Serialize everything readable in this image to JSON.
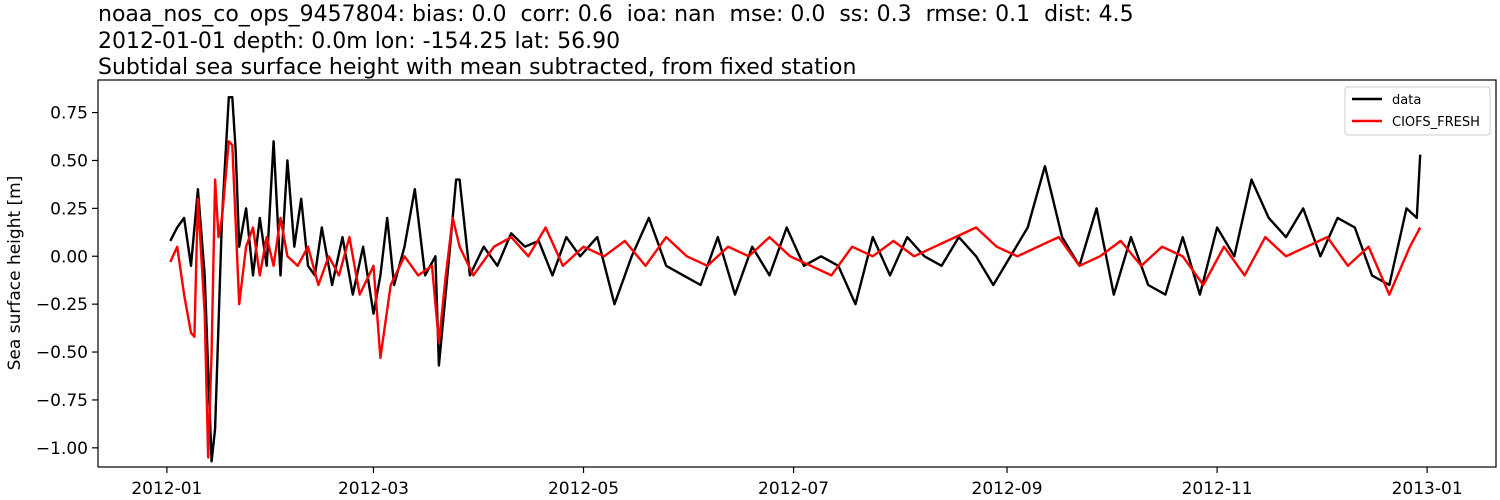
{
  "chart_data": {
    "type": "line",
    "title_lines": [
      "noaa_nos_co_ops_9457804: bias: 0.0  corr: 0.6  ioa: nan  mse: 0.0  ss: 0.3  rmse: 0.1  dist: 4.5",
      "2012-01-01 depth: 0.0m lon: -154.25 lat: 56.90",
      "Subtidal sea surface height with mean subtracted, from fixed station"
    ],
    "xlabel": "",
    "ylabel": "Sea surface height [m]",
    "xlim": [
      "2011-12-12",
      "2013-01-21"
    ],
    "ylim": [
      -1.1,
      0.92
    ],
    "x_ticks": [
      "2012-01-01",
      "2012-03-01",
      "2012-05-01",
      "2012-07-01",
      "2012-09-01",
      "2012-11-01",
      "2013-01-01"
    ],
    "x_tick_labels": [
      "2012-01",
      "2012-03",
      "2012-05",
      "2012-07",
      "2012-09",
      "2012-11",
      "2013-01"
    ],
    "y_ticks": [
      -1.0,
      -0.75,
      -0.5,
      -0.25,
      0.0,
      0.25,
      0.5,
      0.75
    ],
    "y_tick_labels": [
      "−1.00",
      "−0.75",
      "−0.50",
      "−0.25",
      "0.00",
      "0.25",
      "0.50",
      "0.75"
    ],
    "grid": false,
    "legend_position": "upper right",
    "series": [
      {
        "name": "data",
        "color": "#000000",
        "x": [
          "2012-01-02",
          "2012-01-04",
          "2012-01-06",
          "2012-01-08",
          "2012-01-10",
          "2012-01-12",
          "2012-01-13",
          "2012-01-14",
          "2012-01-15",
          "2012-01-17",
          "2012-01-19",
          "2012-01-20",
          "2012-01-21",
          "2012-01-22",
          "2012-01-24",
          "2012-01-26",
          "2012-01-28",
          "2012-01-30",
          "2012-02-01",
          "2012-02-03",
          "2012-02-05",
          "2012-02-07",
          "2012-02-09",
          "2012-02-11",
          "2012-02-13",
          "2012-02-15",
          "2012-02-18",
          "2012-02-21",
          "2012-02-24",
          "2012-02-27",
          "2012-03-01",
          "2012-03-03",
          "2012-03-05",
          "2012-03-07",
          "2012-03-10",
          "2012-03-13",
          "2012-03-16",
          "2012-03-19",
          "2012-03-20",
          "2012-03-23",
          "2012-03-25",
          "2012-03-26",
          "2012-03-29",
          "2012-04-02",
          "2012-04-06",
          "2012-04-10",
          "2012-04-14",
          "2012-04-18",
          "2012-04-22",
          "2012-04-26",
          "2012-04-30",
          "2012-05-05",
          "2012-05-10",
          "2012-05-15",
          "2012-05-20",
          "2012-05-25",
          "2012-05-30",
          "2012-06-04",
          "2012-06-09",
          "2012-06-14",
          "2012-06-19",
          "2012-06-24",
          "2012-06-29",
          "2012-07-04",
          "2012-07-09",
          "2012-07-14",
          "2012-07-19",
          "2012-07-24",
          "2012-07-29",
          "2012-08-03",
          "2012-08-08",
          "2012-08-13",
          "2012-08-18",
          "2012-08-23",
          "2012-08-28",
          "2012-09-02",
          "2012-09-07",
          "2012-09-12",
          "2012-09-17",
          "2012-09-22",
          "2012-09-27",
          "2012-10-02",
          "2012-10-07",
          "2012-10-12",
          "2012-10-17",
          "2012-10-22",
          "2012-10-27",
          "2012-11-01",
          "2012-11-06",
          "2012-11-11",
          "2012-11-16",
          "2012-11-21",
          "2012-11-26",
          "2012-12-01",
          "2012-12-06",
          "2012-12-11",
          "2012-12-16",
          "2012-12-21",
          "2012-12-26",
          "2012-12-29",
          "2012-12-30"
        ],
        "y": [
          0.08,
          0.15,
          0.2,
          -0.05,
          0.35,
          -0.1,
          -0.6,
          -1.07,
          -0.9,
          0.2,
          0.83,
          0.83,
          0.55,
          0.05,
          0.25,
          -0.1,
          0.2,
          -0.05,
          0.6,
          -0.1,
          0.5,
          0.05,
          0.3,
          -0.05,
          -0.1,
          0.15,
          -0.15,
          0.1,
          -0.2,
          0.05,
          -0.3,
          -0.1,
          0.2,
          -0.15,
          0.05,
          0.35,
          -0.1,
          0.0,
          -0.57,
          0.0,
          0.4,
          0.4,
          -0.1,
          0.05,
          -0.05,
          0.12,
          0.05,
          0.08,
          -0.1,
          0.1,
          0.0,
          0.1,
          -0.25,
          0.0,
          0.2,
          -0.05,
          -0.1,
          -0.15,
          0.1,
          -0.2,
          0.05,
          -0.1,
          0.15,
          -0.05,
          0.0,
          -0.05,
          -0.25,
          0.1,
          -0.1,
          0.1,
          0.0,
          -0.05,
          0.1,
          0.0,
          -0.15,
          0.0,
          0.15,
          0.47,
          0.1,
          -0.05,
          0.25,
          -0.2,
          0.1,
          -0.15,
          -0.2,
          0.1,
          -0.2,
          0.15,
          0.0,
          0.4,
          0.2,
          0.1,
          0.25,
          0.0,
          0.2,
          0.15,
          -0.1,
          -0.15,
          0.25,
          0.2,
          0.53
        ]
      },
      {
        "name": "CIOFS_FRESH",
        "color": "#ff0000",
        "x": [
          "2012-01-02",
          "2012-01-04",
          "2012-01-06",
          "2012-01-08",
          "2012-01-09",
          "2012-01-10",
          "2012-01-12",
          "2012-01-13",
          "2012-01-14",
          "2012-01-15",
          "2012-01-16",
          "2012-01-17",
          "2012-01-19",
          "2012-01-20",
          "2012-01-22",
          "2012-01-24",
          "2012-01-26",
          "2012-01-28",
          "2012-01-30",
          "2012-02-01",
          "2012-02-03",
          "2012-02-05",
          "2012-02-08",
          "2012-02-11",
          "2012-02-14",
          "2012-02-17",
          "2012-02-20",
          "2012-02-23",
          "2012-02-26",
          "2012-03-01",
          "2012-03-03",
          "2012-03-06",
          "2012-03-10",
          "2012-03-14",
          "2012-03-18",
          "2012-03-20",
          "2012-03-22",
          "2012-03-24",
          "2012-03-26",
          "2012-03-30",
          "2012-04-05",
          "2012-04-10",
          "2012-04-15",
          "2012-04-20",
          "2012-04-25",
          "2012-05-01",
          "2012-05-07",
          "2012-05-13",
          "2012-05-19",
          "2012-05-25",
          "2012-05-31",
          "2012-06-06",
          "2012-06-12",
          "2012-06-18",
          "2012-06-24",
          "2012-06-30",
          "2012-07-06",
          "2012-07-12",
          "2012-07-18",
          "2012-07-24",
          "2012-07-30",
          "2012-08-05",
          "2012-08-11",
          "2012-08-17",
          "2012-08-23",
          "2012-08-29",
          "2012-09-04",
          "2012-09-10",
          "2012-09-16",
          "2012-09-22",
          "2012-09-28",
          "2012-10-04",
          "2012-10-10",
          "2012-10-16",
          "2012-10-22",
          "2012-10-28",
          "2012-11-03",
          "2012-11-09",
          "2012-11-15",
          "2012-11-21",
          "2012-11-27",
          "2012-12-03",
          "2012-12-09",
          "2012-12-15",
          "2012-12-21",
          "2012-12-27",
          "2012-12-30"
        ],
        "y": [
          -0.03,
          0.05,
          -0.2,
          -0.4,
          -0.42,
          0.3,
          -0.3,
          -1.05,
          -0.5,
          0.4,
          0.1,
          0.2,
          0.6,
          0.58,
          -0.25,
          0.05,
          0.15,
          -0.1,
          0.1,
          -0.05,
          0.2,
          0.0,
          -0.05,
          0.05,
          -0.15,
          0.0,
          -0.1,
          0.1,
          -0.2,
          -0.05,
          -0.53,
          -0.15,
          0.0,
          -0.1,
          -0.05,
          -0.45,
          -0.1,
          0.2,
          0.05,
          -0.1,
          0.05,
          0.1,
          0.0,
          0.15,
          -0.05,
          0.05,
          0.0,
          0.08,
          -0.05,
          0.1,
          0.0,
          -0.05,
          0.05,
          0.0,
          0.1,
          0.0,
          -0.05,
          -0.1,
          0.05,
          0.0,
          0.08,
          0.0,
          0.05,
          0.1,
          0.15,
          0.05,
          0.0,
          0.05,
          0.1,
          -0.05,
          0.0,
          0.08,
          -0.05,
          0.05,
          0.0,
          -0.15,
          0.05,
          -0.1,
          0.1,
          0.0,
          0.05,
          0.1,
          -0.05,
          0.05,
          -0.2,
          0.05,
          0.15
        ]
      }
    ]
  }
}
